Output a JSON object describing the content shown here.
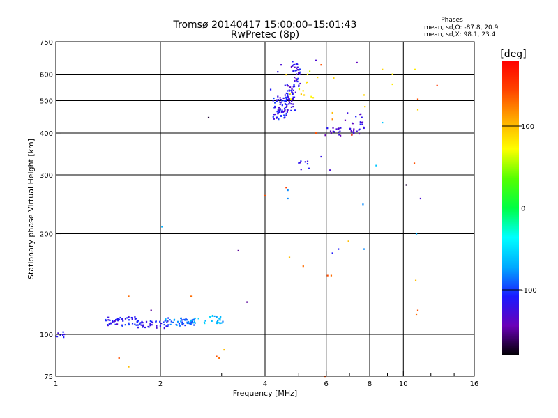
{
  "chart_data": {
    "type": "scatter",
    "title": "Tromsø 20140417 15:00:00–15:01:43",
    "subtitle": "RwPretec (8p)",
    "stats": {
      "heading": "Phases",
      "line1": "mean, sd,O: -87.8, 20.9",
      "line2": "mean, sd,X:  98.1, 23.4"
    },
    "xlabel": "Frequency [MHz]",
    "ylabel": "Stationary phase Virtual Height [km]",
    "x_scale": "log",
    "y_scale": "log",
    "xlim": [
      1,
      16
    ],
    "ylim": [
      75,
      750
    ],
    "xticks": [
      1,
      2,
      4,
      6,
      8,
      10,
      16
    ],
    "yticks": [
      75,
      100,
      200,
      300,
      400,
      500,
      600,
      750
    ],
    "grid": true,
    "colorbar": {
      "label": "[deg]",
      "range": [
        -180,
        180
      ],
      "ticks": [
        100,
        0,
        -100
      ],
      "colormap": [
        "#000000",
        "#6a00b8",
        "#1a1aff",
        "#00aaff",
        "#00ffff",
        "#00ff44",
        "#55ff00",
        "#ffff00",
        "#ffaa00",
        "#ff4400",
        "#ff0000"
      ]
    },
    "series": [
      {
        "clusters": [
          {
            "f": [
              1.0,
              1.06
            ],
            "h": [
              98,
              102
            ],
            "n": 8,
            "phase": -110
          },
          {
            "f": [
              1.38,
              1.72
            ],
            "h": [
              106,
              113
            ],
            "n": 45,
            "phase": -115
          },
          {
            "f": [
              1.72,
              2.1
            ],
            "h": [
              104,
              110
            ],
            "n": 40,
            "phase": -115
          },
          {
            "f": [
              2.05,
              2.5
            ],
            "h": [
              106,
              112
            ],
            "n": 45,
            "phase": -85
          },
          {
            "f": [
              2.5,
              3.05
            ],
            "h": [
              108,
              114
            ],
            "n": 30,
            "phase": -65
          },
          {
            "f": [
              4.2,
              4.65
            ],
            "h": [
              440,
              520
            ],
            "n": 60,
            "phase": -115
          },
          {
            "f": [
              4.55,
              4.9
            ],
            "h": [
              455,
              560
            ],
            "n": 45,
            "phase": -120
          },
          {
            "f": [
              4.75,
              5.05
            ],
            "h": [
              550,
              650
            ],
            "n": 35,
            "phase": -120
          },
          {
            "f": [
              5.0,
              5.35
            ],
            "h": [
              310,
              330
            ],
            "n": 8,
            "phase": -120
          },
          {
            "f": [
              5.9,
              6.6
            ],
            "h": [
              392,
              415
            ],
            "n": 14,
            "phase": -130
          },
          {
            "f": [
              6.8,
              7.7
            ],
            "h": [
              395,
              460
            ],
            "n": 28,
            "phase": -125
          }
        ],
        "points": [
          {
            "f": 2.02,
            "h": 210,
            "phase": -70
          },
          {
            "f": 2.75,
            "h": 445,
            "phase": -170
          },
          {
            "f": 3.35,
            "h": 178,
            "phase": -150
          },
          {
            "f": 3.55,
            "h": 125,
            "phase": -150
          },
          {
            "f": 2.32,
            "h": 107,
            "phase": -120
          },
          {
            "f": 1.88,
            "h": 118,
            "phase": -150
          },
          {
            "f": 4.15,
            "h": 540,
            "phase": -110
          },
          {
            "f": 4.45,
            "h": 640,
            "phase": -130
          },
          {
            "f": 4.35,
            "h": 610,
            "phase": -120
          },
          {
            "f": 4.8,
            "h": 655,
            "phase": -110
          },
          {
            "f": 5.6,
            "h": 660,
            "phase": -130
          },
          {
            "f": 6.2,
            "h": 400,
            "phase": -140
          },
          {
            "f": 6.15,
            "h": 310,
            "phase": -130
          },
          {
            "f": 6.25,
            "h": 175,
            "phase": -110
          },
          {
            "f": 6.5,
            "h": 180,
            "phase": -110
          },
          {
            "f": 5.8,
            "h": 340,
            "phase": -120
          },
          {
            "f": 7.35,
            "h": 650,
            "phase": -140
          },
          {
            "f": 7.65,
            "h": 245,
            "phase": -80
          },
          {
            "f": 7.7,
            "h": 180,
            "phase": -80
          },
          {
            "f": 8.35,
            "h": 320,
            "phase": -60
          },
          {
            "f": 8.7,
            "h": 430,
            "phase": -60
          },
          {
            "f": 10.2,
            "h": 280,
            "phase": -170
          },
          {
            "f": 10.9,
            "h": 200,
            "phase": -70
          },
          {
            "f": 11.2,
            "h": 255,
            "phase": -130
          },
          {
            "f": 4.65,
            "h": 255,
            "phase": -80
          },
          {
            "f": 4.65,
            "h": 270,
            "phase": -80
          }
        ]
      },
      {
        "clusters": [
          {
            "f": [
              4.6,
              5.7
            ],
            "h": [
              500,
              620
            ],
            "n": 14,
            "phase": 80
          }
        ],
        "points": [
          {
            "f": 1.52,
            "h": 85,
            "phase": 140
          },
          {
            "f": 1.62,
            "h": 130,
            "phase": 130
          },
          {
            "f": 1.62,
            "h": 80,
            "phase": 100
          },
          {
            "f": 2.45,
            "h": 130,
            "phase": 130
          },
          {
            "f": 2.9,
            "h": 86,
            "phase": 140
          },
          {
            "f": 2.95,
            "h": 85,
            "phase": 130
          },
          {
            "f": 3.05,
            "h": 90,
            "phase": 100
          },
          {
            "f": 4.0,
            "h": 260,
            "phase": 140
          },
          {
            "f": 4.6,
            "h": 275,
            "phase": 150
          },
          {
            "f": 4.7,
            "h": 170,
            "phase": 100
          },
          {
            "f": 5.15,
            "h": 160,
            "phase": 130
          },
          {
            "f": 5.6,
            "h": 400,
            "phase": 140
          },
          {
            "f": 5.8,
            "h": 640,
            "phase": 140
          },
          {
            "f": 5.95,
            "h": 75,
            "phase": 140
          },
          {
            "f": 6.05,
            "h": 150,
            "phase": 140
          },
          {
            "f": 6.2,
            "h": 150,
            "phase": 130
          },
          {
            "f": 6.25,
            "h": 460,
            "phase": 100
          },
          {
            "f": 6.25,
            "h": 440,
            "phase": 120
          },
          {
            "f": 6.3,
            "h": 585,
            "phase": 90
          },
          {
            "f": 6.95,
            "h": 190,
            "phase": 100
          },
          {
            "f": 7.1,
            "h": 395,
            "phase": 160
          },
          {
            "f": 7.7,
            "h": 520,
            "phase": 90
          },
          {
            "f": 7.75,
            "h": 480,
            "phase": 90
          },
          {
            "f": 8.7,
            "h": 620,
            "phase": 90
          },
          {
            "f": 9.3,
            "h": 600,
            "phase": 80
          },
          {
            "f": 9.3,
            "h": 560,
            "phase": 80
          },
          {
            "f": 10.75,
            "h": 325,
            "phase": 140
          },
          {
            "f": 10.8,
            "h": 620,
            "phase": 80
          },
          {
            "f": 10.85,
            "h": 145,
            "phase": 100
          },
          {
            "f": 10.9,
            "h": 115,
            "phase": 130
          },
          {
            "f": 11.0,
            "h": 505,
            "phase": 140
          },
          {
            "f": 11.0,
            "h": 470,
            "phase": 90
          },
          {
            "f": 11.0,
            "h": 118,
            "phase": 140
          },
          {
            "f": 12.5,
            "h": 555,
            "phase": 150
          }
        ]
      }
    ]
  }
}
